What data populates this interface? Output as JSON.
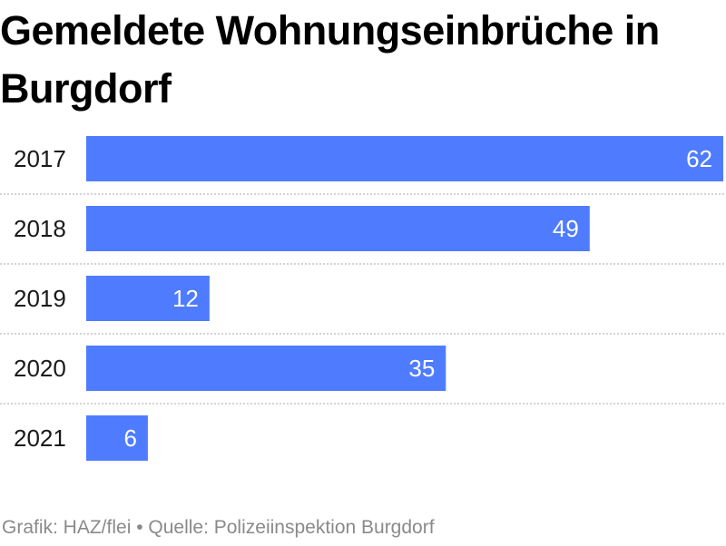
{
  "title": "Gemeldete Wohnungseinbrüche in Burgdorf",
  "footer": "Grafik: HAZ/flei • Quelle: Polizeiinspektion Burgdorf",
  "colors": {
    "bar": "#4f7cff",
    "bar_label": "#ffffff",
    "separator": "#d4d4d4",
    "category_text": "#1a1a1a"
  },
  "chart_data": {
    "type": "bar",
    "orientation": "horizontal",
    "categories": [
      "2017",
      "2018",
      "2019",
      "2020",
      "2021"
    ],
    "values": [
      62,
      49,
      12,
      35,
      6
    ],
    "xlim": [
      0,
      62
    ],
    "grid": false,
    "legend": "none"
  }
}
